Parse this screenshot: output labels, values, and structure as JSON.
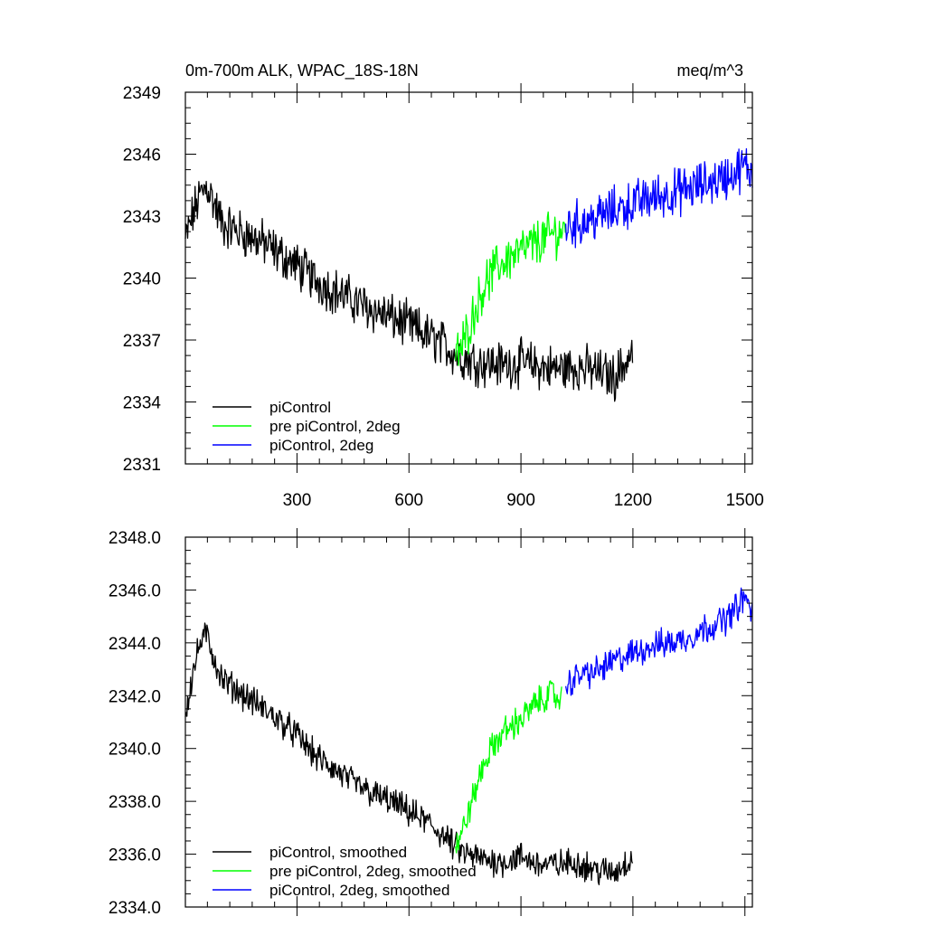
{
  "chart_data": [
    {
      "type": "line",
      "title_left": "0m-700m ALK, WPAC_18S-18N",
      "title_right": "meq/m^3",
      "xlabel": "",
      "ylabel": "",
      "xlim": [
        1,
        1520
      ],
      "ylim": [
        2331,
        2349
      ],
      "x_ticks": [
        300,
        600,
        900,
        1200,
        1500
      ],
      "x_tick_labels": [
        "300",
        "600",
        "900",
        "1200",
        "1500"
      ],
      "y_ticks": [
        2331,
        2334,
        2337,
        2340,
        2343,
        2346,
        2349
      ],
      "y_tick_labels": [
        "2331",
        "2334",
        "2337",
        "2340",
        "2343",
        "2346",
        "2349"
      ],
      "legend": [
        {
          "label": "piControl",
          "color": "#000000"
        },
        {
          "label": "pre piControl, 2deg",
          "color": "#00ff00"
        },
        {
          "label": "piControl, 2deg",
          "color": "#0000ff"
        }
      ],
      "series": [
        {
          "name": "piControl",
          "color": "#000000",
          "x": [
            1,
            20,
            40,
            60,
            80,
            100,
            150,
            200,
            250,
            300,
            350,
            400,
            450,
            500,
            550,
            600,
            650,
            700,
            720,
            750,
            800,
            850,
            900,
            950,
            1000,
            1050,
            1100,
            1150,
            1200
          ],
          "y": [
            2341.8,
            2343.0,
            2344.0,
            2344.5,
            2343.5,
            2342.6,
            2342.2,
            2341.8,
            2341.2,
            2340.6,
            2339.9,
            2339.4,
            2338.9,
            2338.5,
            2338.1,
            2337.7,
            2337.2,
            2336.7,
            2336.4,
            2336.1,
            2335.9,
            2335.8,
            2335.9,
            2335.7,
            2335.6,
            2335.7,
            2335.5,
            2335.2,
            2336.4
          ]
        },
        {
          "name": "pre piControl, 2deg",
          "color": "#00ff00",
          "x": [
            725,
            740,
            760,
            780,
            800,
            830,
            860,
            900,
            940,
            980,
            1020
          ],
          "y": [
            2336.2,
            2336.6,
            2337.6,
            2338.6,
            2339.6,
            2340.4,
            2340.9,
            2341.3,
            2341.7,
            2342.1,
            2342.3
          ]
        },
        {
          "name": "piControl, 2deg",
          "color": "#0000ff",
          "x": [
            1020,
            1060,
            1100,
            1150,
            1200,
            1250,
            1300,
            1350,
            1400,
            1450,
            1500,
            1520
          ],
          "y": [
            2342.5,
            2342.7,
            2342.9,
            2343.3,
            2343.6,
            2343.9,
            2344.1,
            2344.3,
            2344.6,
            2344.9,
            2345.4,
            2345.1
          ]
        }
      ]
    },
    {
      "type": "line",
      "title_left": "",
      "title_right": "",
      "xlabel": "",
      "ylabel": "",
      "xlim": [
        1,
        1520
      ],
      "ylim": [
        2334.0,
        2348.0
      ],
      "x_ticks": [
        300,
        600,
        900,
        1200,
        1500
      ],
      "x_tick_labels": [],
      "y_ticks": [
        2334.0,
        2336.0,
        2338.0,
        2340.0,
        2342.0,
        2344.0,
        2346.0,
        2348.0
      ],
      "y_tick_labels": [
        "2334.0",
        "2336.0",
        "2338.0",
        "2340.0",
        "2342.0",
        "2344.0",
        "2346.0",
        "2348.0"
      ],
      "legend": [
        {
          "label": "piControl, smoothed",
          "color": "#000000"
        },
        {
          "label": "pre piControl, 2deg, smoothed",
          "color": "#00ff00"
        },
        {
          "label": "piControl, 2deg, smoothed",
          "color": "#0000ff"
        }
      ],
      "series": [
        {
          "name": "piControl, smoothed",
          "color": "#000000",
          "x": [
            1,
            20,
            40,
            60,
            80,
            100,
            150,
            200,
            250,
            300,
            350,
            400,
            450,
            500,
            550,
            600,
            650,
            700,
            720,
            750,
            800,
            850,
            900,
            950,
            1000,
            1050,
            1100,
            1150,
            1200
          ],
          "y": [
            2341.3,
            2342.8,
            2344.0,
            2344.3,
            2343.3,
            2342.6,
            2342.1,
            2341.6,
            2341.1,
            2340.5,
            2339.7,
            2339.2,
            2338.7,
            2338.3,
            2338.0,
            2337.6,
            2337.2,
            2336.6,
            2336.3,
            2336.0,
            2335.8,
            2335.7,
            2335.9,
            2335.6,
            2335.6,
            2335.7,
            2335.4,
            2335.3,
            2335.9
          ]
        },
        {
          "name": "pre piControl, 2deg, smoothed",
          "color": "#00ff00",
          "x": [
            725,
            740,
            760,
            780,
            800,
            830,
            860,
            900,
            940,
            980,
            1010
          ],
          "y": [
            2336.3,
            2336.7,
            2337.6,
            2338.5,
            2339.4,
            2340.2,
            2340.7,
            2341.1,
            2341.7,
            2342.1,
            2341.8
          ]
        },
        {
          "name": "piControl, 2deg, smoothed",
          "color": "#0000ff",
          "x": [
            1020,
            1060,
            1100,
            1150,
            1200,
            1250,
            1300,
            1350,
            1400,
            1450,
            1500,
            1520
          ],
          "y": [
            2342.4,
            2342.8,
            2342.9,
            2343.3,
            2343.6,
            2343.9,
            2344.0,
            2344.2,
            2344.6,
            2344.9,
            2345.7,
            2345.2
          ]
        }
      ]
    }
  ]
}
